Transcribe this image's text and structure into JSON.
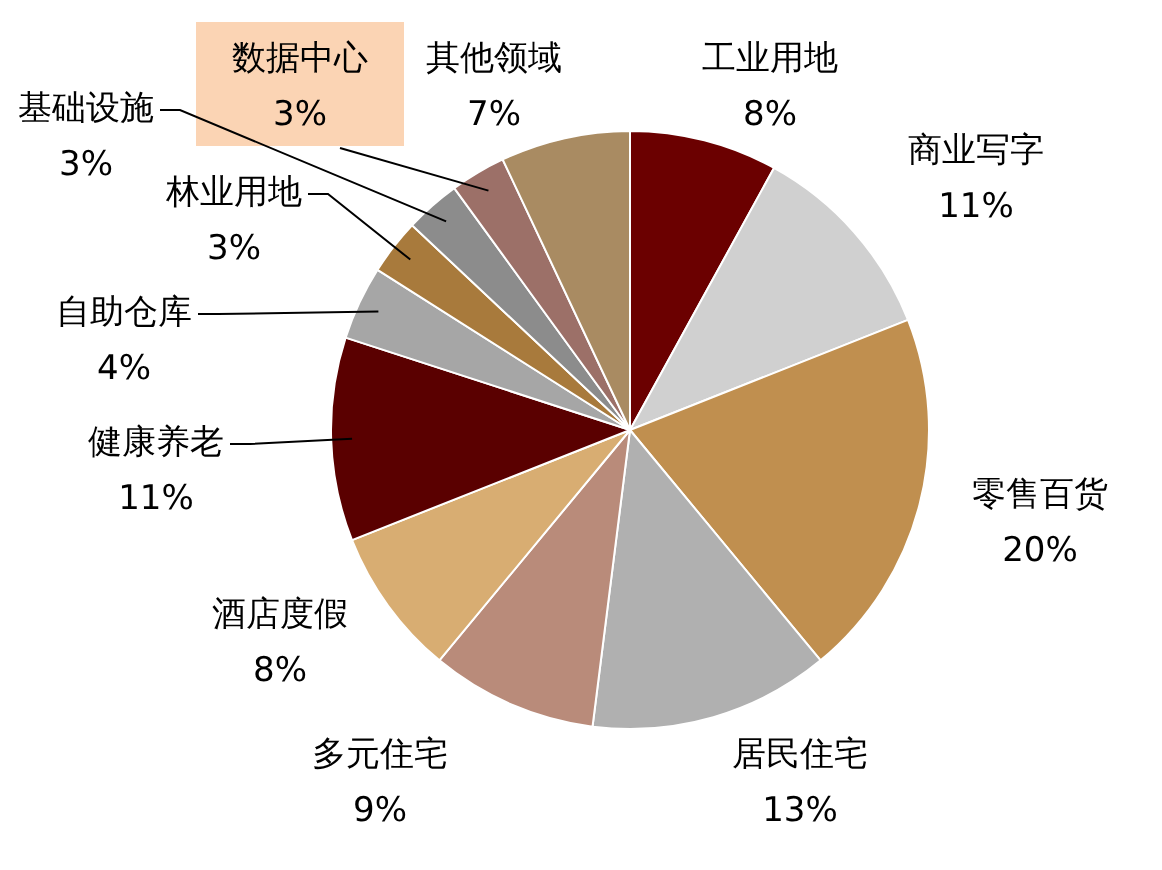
{
  "chart_data": {
    "type": "pie",
    "categories": [
      "工业用地",
      "商业写字",
      "零售百货",
      "居民住宅",
      "多元住宅",
      "酒店度假",
      "健康养老",
      "自助仓库",
      "林业用地",
      "基础设施",
      "数据中心",
      "其他领域"
    ],
    "values": [
      8,
      11,
      20,
      13,
      9,
      8,
      11,
      4,
      3,
      3,
      3,
      7
    ],
    "colors": [
      "#6b0000",
      "#d0d0d0",
      "#c08f4f",
      "#b0b0b0",
      "#b98b7a",
      "#d8ad72",
      "#5a0000",
      "#a6a6a6",
      "#a87a3c",
      "#8c8c8c",
      "#9c7068",
      "#a98b62"
    ],
    "value_labels": [
      "8%",
      "11%",
      "20%",
      "13%",
      "9%",
      "8%",
      "11%",
      "4%",
      "3%",
      "3%",
      "3%",
      "7%"
    ],
    "legend": false
  }
}
